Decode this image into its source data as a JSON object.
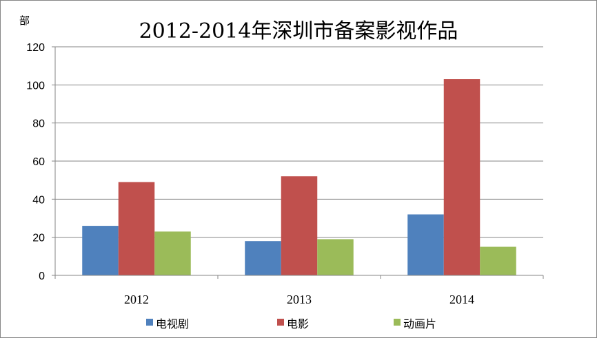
{
  "chart_data": {
    "type": "bar",
    "title": "2012-2014年深圳市备案影视作品",
    "ylabel": "部",
    "xlabel": "",
    "categories": [
      "2012",
      "2013",
      "2014"
    ],
    "series": [
      {
        "name": "电视剧",
        "values": [
          26,
          18,
          32
        ],
        "color": "#4F81BD"
      },
      {
        "name": "电影",
        "values": [
          49,
          52,
          103
        ],
        "color": "#C0504D"
      },
      {
        "name": "动画片",
        "values": [
          23,
          19,
          15
        ],
        "color": "#9BBB59"
      }
    ],
    "ylim": [
      0,
      120
    ],
    "yticks": [
      0,
      20,
      40,
      60,
      80,
      100,
      120
    ],
    "grid": true,
    "legend_position": "bottom"
  }
}
